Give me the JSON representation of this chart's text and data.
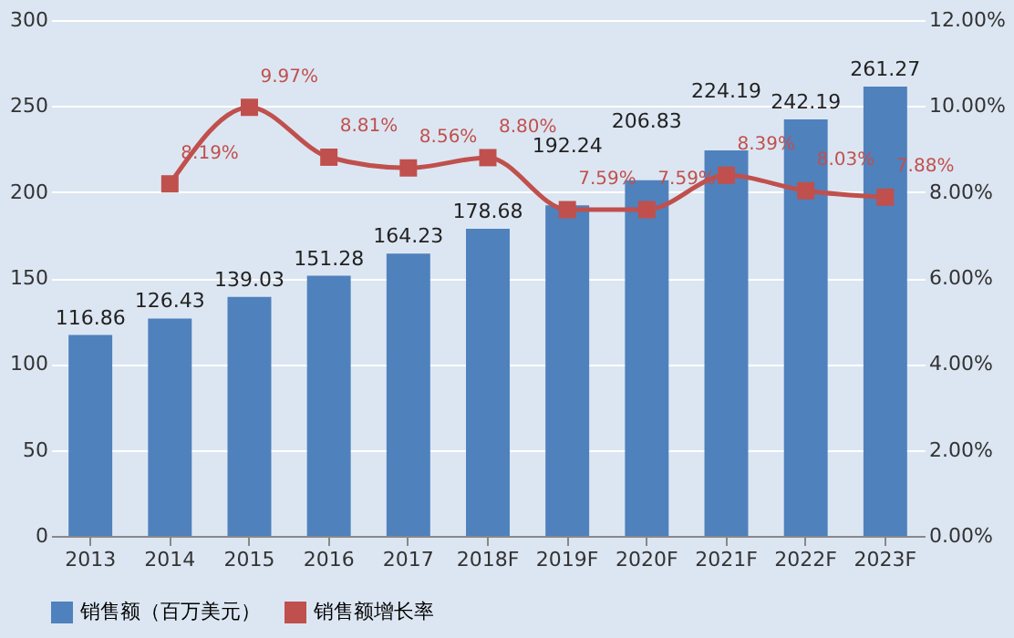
{
  "chart_data": {
    "type": "bar",
    "categories": [
      "2013",
      "2014",
      "2015",
      "2016",
      "2017",
      "2018F",
      "2019F",
      "2020F",
      "2021F",
      "2022F",
      "2023F"
    ],
    "series": [
      {
        "name": "销售额（百万美元）",
        "type": "bar",
        "color": "#4f81bd",
        "values": [
          116.86,
          126.43,
          139.03,
          151.28,
          164.23,
          178.68,
          192.24,
          206.83,
          224.19,
          242.19,
          261.27
        ]
      },
      {
        "name": "销售额增长率",
        "type": "line",
        "axis": "y2",
        "color": "#c0504d",
        "marker": "square",
        "values": [
          null,
          8.19,
          9.97,
          8.81,
          8.56,
          8.8,
          7.59,
          7.59,
          8.39,
          8.03,
          7.88
        ],
        "value_labels": [
          null,
          "8.19%",
          "9.97%",
          "8.81%",
          "8.56%",
          "8.80%",
          "7.59%",
          "7.59%",
          "8.39%",
          "8.03%",
          "7.88%"
        ]
      }
    ],
    "data_labels": true,
    "ylim": [
      0,
      300
    ],
    "yticks": [
      0,
      50,
      100,
      150,
      200,
      250,
      300
    ],
    "y2lim": [
      0,
      12
    ],
    "y2ticks": [
      {
        "value": 0,
        "label": "0.00%"
      },
      {
        "value": 2,
        "label": "2.00%"
      },
      {
        "value": 4,
        "label": "4.00%"
      },
      {
        "value": 6,
        "label": "6.00%"
      },
      {
        "value": 8,
        "label": "8.00%"
      },
      {
        "value": 10,
        "label": "10.00%"
      },
      {
        "value": 12,
        "label": "12.00%"
      }
    ],
    "grid": "y",
    "legend": "bottom"
  }
}
